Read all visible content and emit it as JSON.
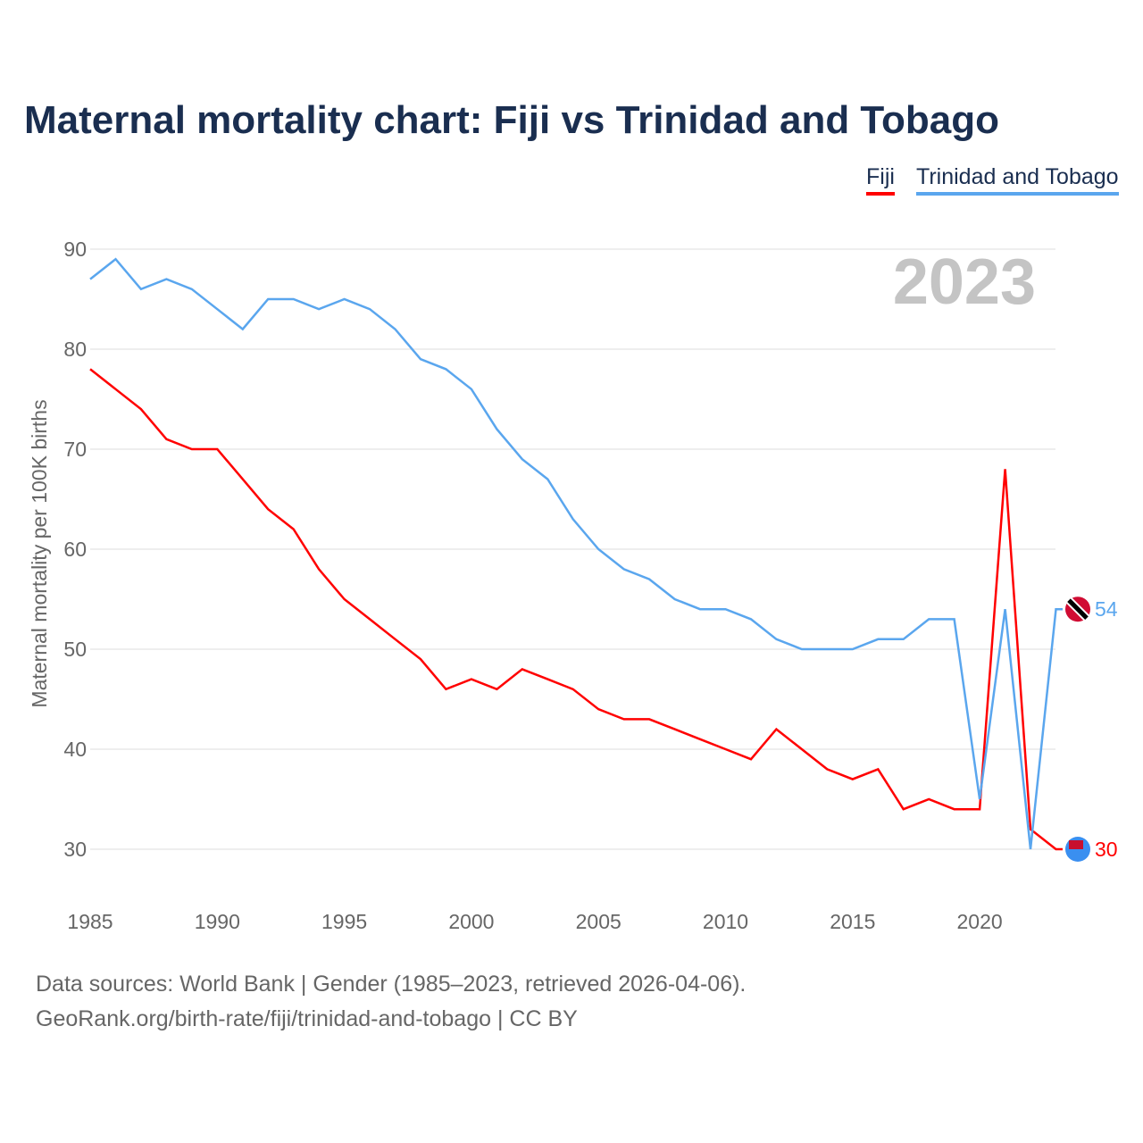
{
  "chart_data": {
    "type": "line",
    "title": "Maternal mortality chart: Fiji vs Trinidad and Tobago",
    "ylabel": "Maternal mortality per 100K births",
    "xlabel": "",
    "ylim": [
      25,
      92
    ],
    "xlim": [
      1985,
      2023
    ],
    "yticks": [
      30,
      40,
      50,
      60,
      70,
      80,
      90
    ],
    "xticks": [
      1985,
      1990,
      1995,
      2000,
      2005,
      2010,
      2015,
      2020
    ],
    "year_label": "2023",
    "legend": "top-right",
    "x": [
      1985,
      1986,
      1987,
      1988,
      1989,
      1990,
      1991,
      1992,
      1993,
      1994,
      1995,
      1996,
      1997,
      1998,
      1999,
      2000,
      2001,
      2002,
      2003,
      2004,
      2005,
      2006,
      2007,
      2008,
      2009,
      2010,
      2011,
      2012,
      2013,
      2014,
      2015,
      2016,
      2017,
      2018,
      2019,
      2020,
      2021,
      2022,
      2023
    ],
    "series": [
      {
        "name": "Fiji",
        "color": "#ff0000",
        "end_label": "30",
        "values": [
          78,
          76,
          74,
          71,
          70,
          70,
          67,
          64,
          62,
          58,
          55,
          53,
          51,
          49,
          46,
          47,
          46,
          48,
          47,
          46,
          44,
          43,
          43,
          42,
          41,
          40,
          39,
          42,
          40,
          38,
          37,
          38,
          34,
          35,
          34,
          34,
          68,
          32,
          30
        ]
      },
      {
        "name": "Trinidad and Tobago",
        "color": "#5aa6ee",
        "end_label": "54",
        "values": [
          87,
          89,
          86,
          87,
          86,
          84,
          82,
          85,
          85,
          84,
          85,
          84,
          82,
          79,
          78,
          76,
          72,
          69,
          67,
          63,
          60,
          58,
          57,
          55,
          54,
          54,
          53,
          51,
          50,
          50,
          50,
          51,
          51,
          53,
          53,
          35,
          54,
          30,
          54
        ]
      }
    ]
  },
  "sources": {
    "line1": "Data sources: World Bank | Gender (1985–2023, retrieved 2026-04-06).",
    "line2": "GeoRank.org/birth-rate/fiji/trinidad-and-tobago | CC BY"
  }
}
